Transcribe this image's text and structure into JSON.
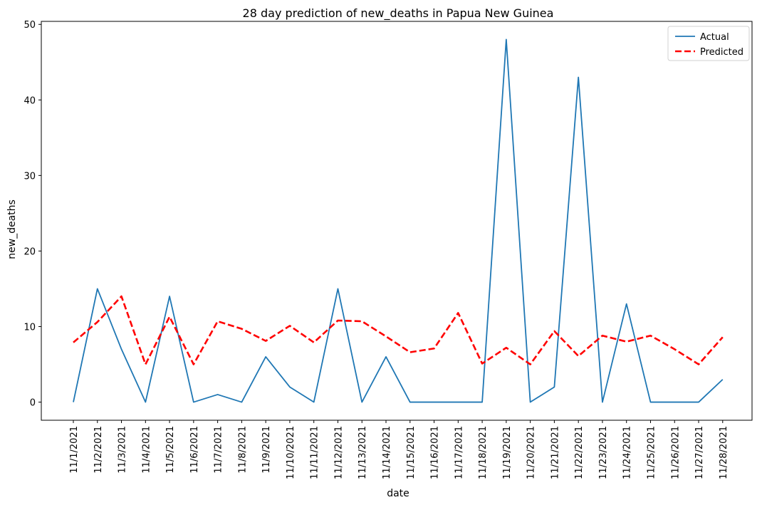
{
  "chart_data": {
    "type": "line",
    "title": "28 day prediction of new_deaths in Papua New Guinea",
    "xlabel": "date",
    "ylabel": "new_deaths",
    "ylim": [
      -2.4,
      50.4
    ],
    "yticks": [
      0,
      10,
      20,
      30,
      40,
      50
    ],
    "grid": false,
    "legend_position": "top-right",
    "x": [
      "11/1/2021",
      "11/2/2021",
      "11/3/2021",
      "11/4/2021",
      "11/5/2021",
      "11/6/2021",
      "11/7/2021",
      "11/8/2021",
      "11/9/2021",
      "11/10/2021",
      "11/11/2021",
      "11/12/2021",
      "11/13/2021",
      "11/14/2021",
      "11/15/2021",
      "11/16/2021",
      "11/17/2021",
      "11/18/2021",
      "11/19/2021",
      "11/20/2021",
      "11/21/2021",
      "11/22/2021",
      "11/23/2021",
      "11/24/2021",
      "11/25/2021",
      "11/26/2021",
      "11/27/2021",
      "11/28/2021"
    ],
    "series": [
      {
        "name": "Actual",
        "color": "#1f77b4",
        "style": "solid",
        "values": [
          0,
          15,
          7,
          0,
          14,
          0,
          1,
          0,
          6,
          2,
          0,
          15,
          0,
          6,
          0,
          0,
          0,
          0,
          48,
          0,
          2,
          43,
          0,
          13,
          0,
          0,
          0,
          3
        ]
      },
      {
        "name": "Predicted",
        "color": "#ff0000",
        "style": "dashed",
        "values": [
          7.9,
          10.6,
          14.0,
          5.0,
          11.3,
          5.0,
          10.7,
          9.7,
          8.1,
          10.1,
          7.9,
          10.8,
          10.7,
          8.7,
          6.6,
          7.1,
          11.8,
          5.1,
          7.2,
          5.0,
          9.4,
          6.1,
          8.8,
          8.0,
          8.8,
          7.0,
          5.0,
          8.6
        ]
      }
    ]
  }
}
